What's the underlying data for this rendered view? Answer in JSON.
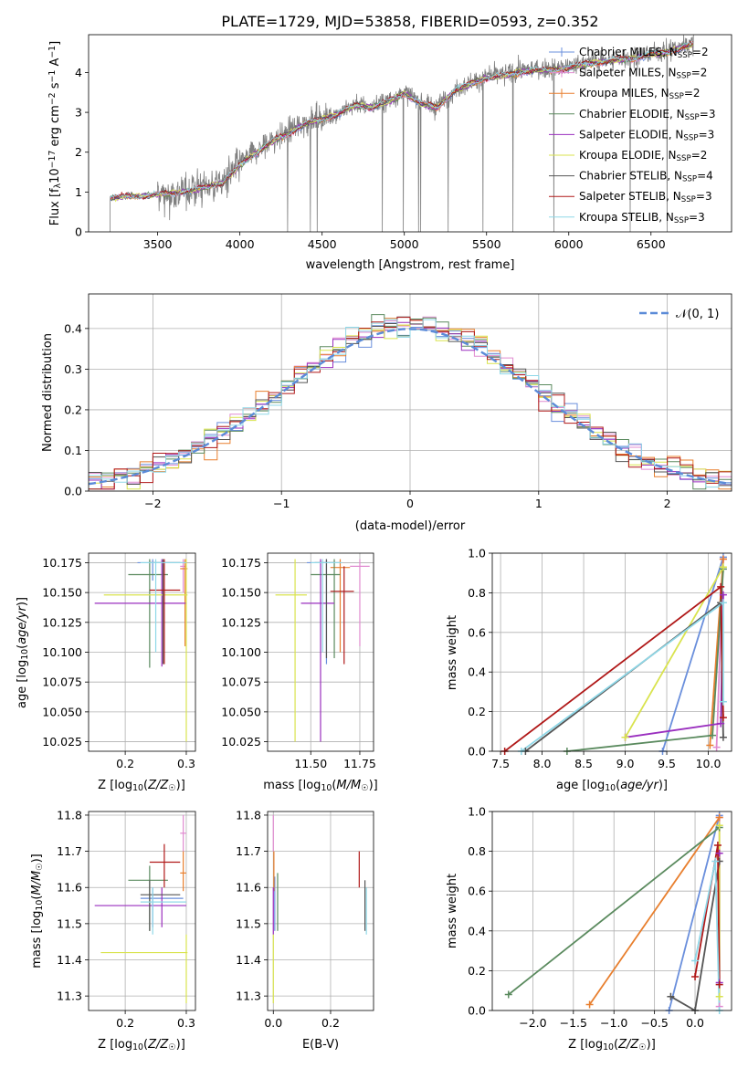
{
  "title": "PLATE=1729, MJD=53858, FIBERID=0593, z=0.352",
  "colors": {
    "chabrier_miles": "#6a8fdc",
    "salpeter_miles": "#e08bd0",
    "kroupa_miles": "#e87f2e",
    "chabrier_elodie": "#5a8a5e",
    "salpeter_elodie": "#9a2fbf",
    "kroupa_elodie": "#d9e34e",
    "chabrier_stelib": "#555555",
    "salpeter_stelib": "#b01818",
    "kroupa_stelib": "#8fd8e8",
    "spectrum": "#7f7f7f",
    "normal_fit": "#5b8bd8"
  },
  "chart_data": [
    {
      "type": "line",
      "panel": "spectrum",
      "xlabel": "wavelength [Angstrom, rest frame]",
      "ylabel": "Flux [f_λ 10^-17 erg cm^-2 s^-1 A^-1]",
      "xlim": [
        3080,
        6990
      ],
      "ylim": [
        0,
        4.95
      ],
      "xticks": [
        3500,
        4000,
        4500,
        5000,
        5500,
        6000,
        6500
      ],
      "yticks": [
        0,
        1,
        2,
        3,
        4
      ],
      "grid": false,
      "legend_position": "top-right",
      "legend": [
        "Chabrier MILES, N_SSP=2",
        "Salpeter MILES, N_SSP=2",
        "Kroupa MILES, N_SSP=2",
        "Chabrier ELODIE, N_SSP=3",
        "Salpeter ELODIE, N_SSP=3",
        "Kroupa ELODIE, N_SSP=2",
        "Chabrier STELIB, N_SSP=4",
        "Salpeter STELIB, N_SSP=3",
        "Kroupa STELIB, N_SSP=3"
      ],
      "continuum": {
        "x": [
          3210,
          3300,
          3400,
          3500,
          3600,
          3700,
          3800,
          3900,
          4000,
          4100,
          4200,
          4300,
          4400,
          4500,
          4600,
          4700,
          4800,
          4900,
          5000,
          5100,
          5200,
          5300,
          5400,
          5500,
          5600,
          5700,
          5800,
          5900,
          6000,
          6100,
          6200,
          6300,
          6400,
          6500,
          6600,
          6700,
          6760
        ],
        "y": [
          0.85,
          0.9,
          0.9,
          0.95,
          0.98,
          1.05,
          1.15,
          1.25,
          1.7,
          2.0,
          2.3,
          2.5,
          2.75,
          2.85,
          3.0,
          3.2,
          3.15,
          3.3,
          3.5,
          3.25,
          3.15,
          3.55,
          3.75,
          3.9,
          3.95,
          4.05,
          4.1,
          4.1,
          4.15,
          4.25,
          4.3,
          4.35,
          4.4,
          4.5,
          4.55,
          4.7,
          4.75
        ]
      }
    },
    {
      "type": "line",
      "panel": "residuals",
      "xlabel": "(data-model)/error",
      "ylabel": "Normed distribution",
      "xlim": [
        -2.5,
        2.5
      ],
      "ylim": [
        0,
        0.485
      ],
      "xticks": [
        -2,
        -1,
        0,
        1,
        2
      ],
      "yticks": [
        0.0,
        0.1,
        0.2,
        0.3,
        0.4
      ],
      "grid": true,
      "legend_position": "top-right",
      "legend": [
        "𝒩(0, 1)"
      ],
      "bin_width": 0.1
    },
    {
      "type": "scatter",
      "panel": "age_vs_Z",
      "xlabel": "Z [log10(Z/Z☉)]",
      "ylabel": "age  [log10(age/yr)]",
      "xlim": [
        0.14,
        0.315
      ],
      "ylim": [
        10.017,
        10.183
      ],
      "xticks": [
        0.2,
        0.3
      ],
      "yticks": [
        10.025,
        10.05,
        10.075,
        10.1,
        10.125,
        10.15,
        10.175
      ],
      "grid": true,
      "points": [
        {
          "k": "chabrier_miles",
          "x": 0.245,
          "y": 10.175,
          "xerr": [
            0.22,
            0.3
          ],
          "yerr": [
            10.16,
            10.178
          ]
        },
        {
          "k": "salpeter_miles",
          "x": 0.295,
          "y": 10.172,
          "xerr": [
            0.29,
            0.3
          ],
          "yerr": [
            10.15,
            10.178
          ]
        },
        {
          "k": "kroupa_miles",
          "x": 0.298,
          "y": 10.17,
          "xerr": [
            0.29,
            0.302
          ],
          "yerr": [
            10.105,
            10.178
          ]
        },
        {
          "k": "chabrier_elodie",
          "x": 0.24,
          "y": 10.165,
          "xerr": [
            0.205,
            0.27
          ],
          "yerr": [
            10.087,
            10.178
          ]
        },
        {
          "k": "salpeter_elodie",
          "x": 0.26,
          "y": 10.141,
          "xerr": [
            0.15,
            0.3
          ],
          "yerr": [
            10.088,
            10.178
          ]
        },
        {
          "k": "kroupa_elodie",
          "x": 0.3,
          "y": 10.148,
          "xerr": [
            0.165,
            0.302
          ],
          "yerr": [
            10.025,
            10.178
          ]
        },
        {
          "k": "chabrier_stelib",
          "x": 0.262,
          "y": 10.175,
          "xerr": [
            0.24,
            0.29
          ],
          "yerr": [
            10.09,
            10.178
          ]
        },
        {
          "k": "salpeter_stelib",
          "x": 0.264,
          "y": 10.152,
          "xerr": [
            0.24,
            0.29
          ],
          "yerr": [
            10.09,
            10.178
          ]
        },
        {
          "k": "kroupa_stelib",
          "x": 0.25,
          "y": 10.175,
          "xerr": [
            0.225,
            0.3
          ],
          "yerr": [
            10.1,
            10.178
          ]
        }
      ]
    },
    {
      "type": "scatter",
      "panel": "age_vs_mass",
      "xlabel": "mass [log10(M/M☉)]",
      "ylabel": "",
      "xlim": [
        11.28,
        11.82
      ],
      "ylim": [
        10.017,
        10.183
      ],
      "xticks": [
        11.5,
        11.75
      ],
      "yticks": [
        10.025,
        10.05,
        10.075,
        10.1,
        10.125,
        10.15,
        10.175
      ],
      "grid": true,
      "points": [
        {
          "k": "chabrier_miles",
          "x": 11.58,
          "y": 10.175,
          "xerr": [
            11.48,
            11.62
          ],
          "yerr": [
            10.09,
            10.178
          ]
        },
        {
          "k": "salpeter_miles",
          "x": 11.75,
          "y": 10.172,
          "xerr": [
            11.7,
            11.8
          ],
          "yerr": [
            10.105,
            10.178
          ]
        },
        {
          "k": "kroupa_miles",
          "x": 11.65,
          "y": 10.171,
          "xerr": [
            11.6,
            11.7
          ],
          "yerr": [
            10.1,
            10.178
          ]
        },
        {
          "k": "chabrier_elodie",
          "x": 11.62,
          "y": 10.165,
          "xerr": [
            11.5,
            11.65
          ],
          "yerr": [
            10.095,
            10.178
          ]
        },
        {
          "k": "salpeter_elodie",
          "x": 11.55,
          "y": 10.141,
          "xerr": [
            11.45,
            11.62
          ],
          "yerr": [
            10.025,
            10.178
          ]
        },
        {
          "k": "kroupa_elodie",
          "x": 11.42,
          "y": 10.148,
          "xerr": [
            11.32,
            11.48
          ],
          "yerr": [
            10.025,
            10.178
          ]
        },
        {
          "k": "chabrier_stelib",
          "x": 11.58,
          "y": 10.175,
          "xerr": [
            11.52,
            11.65
          ],
          "yerr": [
            10.095,
            10.178
          ]
        },
        {
          "k": "salpeter_stelib",
          "x": 11.67,
          "y": 10.151,
          "xerr": [
            11.6,
            11.72
          ],
          "yerr": [
            10.09,
            10.172
          ]
        },
        {
          "k": "kroupa_stelib",
          "x": 11.56,
          "y": 10.175,
          "xerr": [
            11.5,
            11.66
          ],
          "yerr": [
            10.1,
            10.178
          ]
        }
      ]
    },
    {
      "type": "line",
      "panel": "massweight_vs_age",
      "xlabel": "age  [log10(age/yr)]",
      "ylabel": "mass weight",
      "xlim": [
        7.4,
        10.28
      ],
      "ylim": [
        0,
        1.0
      ],
      "xticks": [
        7.5,
        8.0,
        8.5,
        9.0,
        9.5,
        10.0
      ],
      "yticks": [
        0.0,
        0.2,
        0.4,
        0.6,
        0.8,
        1.0
      ],
      "grid": true,
      "series": [
        {
          "k": "chabrier_miles",
          "x": [
            9.45,
            10.18
          ],
          "y": [
            0.0,
            0.98
          ]
        },
        {
          "k": "salpeter_miles",
          "x": [
            10.1,
            10.18
          ],
          "y": [
            0.02,
            0.97
          ]
        },
        {
          "k": "kroupa_miles",
          "x": [
            10.02,
            10.18
          ],
          "y": [
            0.03,
            0.97
          ]
        },
        {
          "k": "chabrier_elodie",
          "x": [
            8.3,
            10.05,
            10.18
          ],
          "y": [
            0.0,
            0.08,
            0.92
          ]
        },
        {
          "k": "salpeter_elodie",
          "x": [
            9.0,
            10.15,
            10.18
          ],
          "y": [
            0.07,
            0.14,
            0.79
          ]
        },
        {
          "k": "kroupa_elodie",
          "x": [
            9.0,
            10.18
          ],
          "y": [
            0.07,
            0.93
          ]
        },
        {
          "k": "chabrier_stelib",
          "x": [
            7.8,
            10.15,
            10.18
          ],
          "y": [
            0.0,
            0.75,
            0.07
          ]
        },
        {
          "k": "salpeter_stelib",
          "x": [
            7.55,
            10.15,
            10.18
          ],
          "y": [
            0.0,
            0.83,
            0.17
          ]
        },
        {
          "k": "kroupa_stelib",
          "x": [
            7.75,
            10.18,
            10.18
          ],
          "y": [
            0.0,
            0.75,
            0.25
          ]
        }
      ]
    },
    {
      "type": "scatter",
      "panel": "mass_vs_Z",
      "xlabel": "Z [log10(Z/Z☉)]",
      "ylabel": "mass [log10(M/M☉)]",
      "xlim": [
        0.14,
        0.315
      ],
      "ylim": [
        11.26,
        11.81
      ],
      "xticks": [
        0.2,
        0.3
      ],
      "yticks": [
        11.3,
        11.4,
        11.5,
        11.6,
        11.7,
        11.8
      ],
      "grid": true,
      "points": [
        {
          "k": "chabrier_miles",
          "x": 0.245,
          "y": 11.57,
          "xerr": [
            0.225,
            0.295
          ],
          "yerr": [
            11.49,
            11.6
          ]
        },
        {
          "k": "salpeter_miles",
          "x": 0.295,
          "y": 11.75,
          "xerr": [
            0.29,
            0.3
          ],
          "yerr": [
            11.7,
            11.8
          ]
        },
        {
          "k": "kroupa_miles",
          "x": 0.295,
          "y": 11.64,
          "xerr": [
            0.29,
            0.3
          ],
          "yerr": [
            11.59,
            11.7
          ]
        },
        {
          "k": "chabrier_elodie",
          "x": 0.24,
          "y": 11.62,
          "xerr": [
            0.205,
            0.27
          ],
          "yerr": [
            11.48,
            11.66
          ]
        },
        {
          "k": "salpeter_elodie",
          "x": 0.26,
          "y": 11.55,
          "xerr": [
            0.15,
            0.3
          ],
          "yerr": [
            11.49,
            11.6
          ]
        },
        {
          "k": "kroupa_elodie",
          "x": 0.3,
          "y": 11.42,
          "xerr": [
            0.16,
            0.302
          ],
          "yerr": [
            11.28,
            11.47
          ]
        },
        {
          "k": "chabrier_stelib",
          "x": 0.24,
          "y": 11.58,
          "xerr": [
            0.225,
            0.29
          ],
          "yerr": [
            11.48,
            11.62
          ]
        },
        {
          "k": "salpeter_stelib",
          "x": 0.264,
          "y": 11.67,
          "xerr": [
            0.24,
            0.29
          ],
          "yerr": [
            11.6,
            11.72
          ]
        },
        {
          "k": "kroupa_stelib",
          "x": 0.245,
          "y": 11.56,
          "xerr": [
            0.225,
            0.3
          ],
          "yerr": [
            11.47,
            11.6
          ]
        }
      ]
    },
    {
      "type": "scatter",
      "panel": "mass_vs_EBV",
      "xlabel": "E(B-V)",
      "ylabel": "",
      "xlim": [
        -0.02,
        0.35
      ],
      "ylim": [
        11.26,
        11.81
      ],
      "xticks": [
        0.0,
        0.2
      ],
      "yticks": [
        11.3,
        11.4,
        11.5,
        11.6,
        11.7,
        11.8
      ],
      "grid": true,
      "points": [
        {
          "k": "chabrier_miles",
          "x": 0.005,
          "y": 11.57,
          "yerr": [
            11.48,
            11.63
          ]
        },
        {
          "k": "salpeter_miles",
          "x": 0.0,
          "y": 11.75,
          "yerr": [
            11.7,
            11.8
          ]
        },
        {
          "k": "kroupa_miles",
          "x": 0.002,
          "y": 11.64,
          "yerr": [
            11.59,
            11.7
          ]
        },
        {
          "k": "chabrier_elodie",
          "x": 0.015,
          "y": 11.62,
          "yerr": [
            11.48,
            11.64
          ]
        },
        {
          "k": "salpeter_elodie",
          "x": 0.0,
          "y": 11.55,
          "yerr": [
            11.47,
            11.6
          ]
        },
        {
          "k": "kroupa_elodie",
          "x": 0.0,
          "y": 11.42,
          "yerr": [
            11.28,
            11.47
          ]
        },
        {
          "k": "chabrier_stelib",
          "x": 0.32,
          "y": 11.58,
          "yerr": [
            11.48,
            11.62
          ]
        },
        {
          "k": "salpeter_stelib",
          "x": 0.3,
          "y": 11.67,
          "yerr": [
            11.6,
            11.7
          ]
        },
        {
          "k": "kroupa_stelib",
          "x": 0.325,
          "y": 11.55,
          "yerr": [
            11.47,
            11.6
          ]
        }
      ]
    },
    {
      "type": "line",
      "panel": "massweight_vs_Z",
      "xlabel": "Z [log10(Z/Z☉)]",
      "ylabel": "mass weight",
      "xlim": [
        -2.5,
        0.45
      ],
      "ylim": [
        0,
        1.0
      ],
      "xticks": [
        -2.0,
        -1.5,
        -1.0,
        -0.5,
        0.0
      ],
      "yticks": [
        0.0,
        0.2,
        0.4,
        0.6,
        0.8,
        1.0
      ],
      "grid": true,
      "series": [
        {
          "k": "chabrier_miles",
          "x": [
            -0.32,
            0.3
          ],
          "y": [
            0.0,
            0.98
          ]
        },
        {
          "k": "salpeter_miles",
          "x": [
            0.3,
            0.3
          ],
          "y": [
            0.02,
            0.97
          ]
        },
        {
          "k": "kroupa_miles",
          "x": [
            -1.3,
            0.3
          ],
          "y": [
            0.03,
            0.97
          ]
        },
        {
          "k": "chabrier_elodie",
          "x": [
            -2.3,
            0.3
          ],
          "y": [
            0.08,
            0.92
          ]
        },
        {
          "k": "salpeter_elodie",
          "x": [
            0.3,
            0.3
          ],
          "y": [
            0.14,
            0.79
          ]
        },
        {
          "k": "kroupa_elodie",
          "x": [
            0.3,
            0.3
          ],
          "y": [
            0.07,
            0.93
          ]
        },
        {
          "k": "chabrier_stelib",
          "x": [
            -0.3,
            0.0,
            0.3
          ],
          "y": [
            0.07,
            0.0,
            0.75
          ]
        },
        {
          "k": "salpeter_stelib",
          "x": [
            0.0,
            0.28,
            0.3
          ],
          "y": [
            0.17,
            0.83,
            0.13
          ]
        },
        {
          "k": "kroupa_stelib",
          "x": [
            0.0,
            0.25,
            0.3
          ],
          "y": [
            0.25,
            0.75,
            0.0
          ]
        }
      ]
    }
  ]
}
